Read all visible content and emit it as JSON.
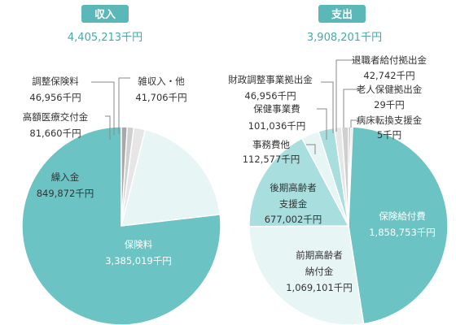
{
  "colors": {
    "header": "#5bb8b8",
    "total_text": "#45a9a9",
    "dark_slice": "#6cc3c3",
    "mid_slice": "#a8dede",
    "light_slice": "#e8f5f5",
    "gray1": "#a8a8a8",
    "gray2": "#cfcfcf",
    "gray3": "#e6e6e6",
    "leader": "#888888",
    "label": "#333333"
  },
  "chart_data": [
    {
      "type": "pie",
      "title": "収入",
      "total_label": "4,405,213千円",
      "unit": "千円",
      "slices": [
        {
          "name": "保険料",
          "value": 3385019,
          "value_label": "3,385,019千円",
          "color": "dark"
        },
        {
          "name": "繰入金",
          "value": 849872,
          "value_label": "849,872千円",
          "color": "light"
        },
        {
          "name": "高額医療交付金",
          "value": 81660,
          "value_label": "81,660千円",
          "color": "gray3"
        },
        {
          "name": "調整保険料",
          "value": 46956,
          "value_label": "46,956千円",
          "color": "gray2"
        },
        {
          "name": "雑収入・他",
          "value": 41706,
          "value_label": "41,706千円",
          "color": "gray1"
        }
      ]
    },
    {
      "type": "pie",
      "title": "支出",
      "total_label": "3,908,201千円",
      "unit": "千円",
      "slices": [
        {
          "name": "保険給付費",
          "value": 1858753,
          "value_label": "1,858,753千円",
          "color": "dark"
        },
        {
          "name": "前期高齢者納付金",
          "name_lines": [
            "前期高齢者",
            "納付金"
          ],
          "value": 1069101,
          "value_label": "1,069,101千円",
          "color": "light"
        },
        {
          "name": "後期高齢者支援金",
          "name_lines": [
            "後期高齢者",
            "支援金"
          ],
          "value": 677002,
          "value_label": "677,002千円",
          "color": "mid"
        },
        {
          "name": "事務費他",
          "value": 112577,
          "value_label": "112,577千円",
          "color": "light"
        },
        {
          "name": "保健事業費",
          "value": 101036,
          "value_label": "101,036千円",
          "color": "mid"
        },
        {
          "name": "財政調整事業拠出金",
          "value": 46956,
          "value_label": "46,956千円",
          "color": "gray3"
        },
        {
          "name": "退職者給付拠出金",
          "value": 42742,
          "value_label": "42,742千円",
          "color": "gray2"
        },
        {
          "name": "老人保健拠出金",
          "value": 29,
          "value_label": "29千円",
          "color": "gray1"
        },
        {
          "name": "病床転換支援金",
          "value": 5,
          "value_label": "5千円",
          "color": "gray3"
        }
      ]
    }
  ]
}
